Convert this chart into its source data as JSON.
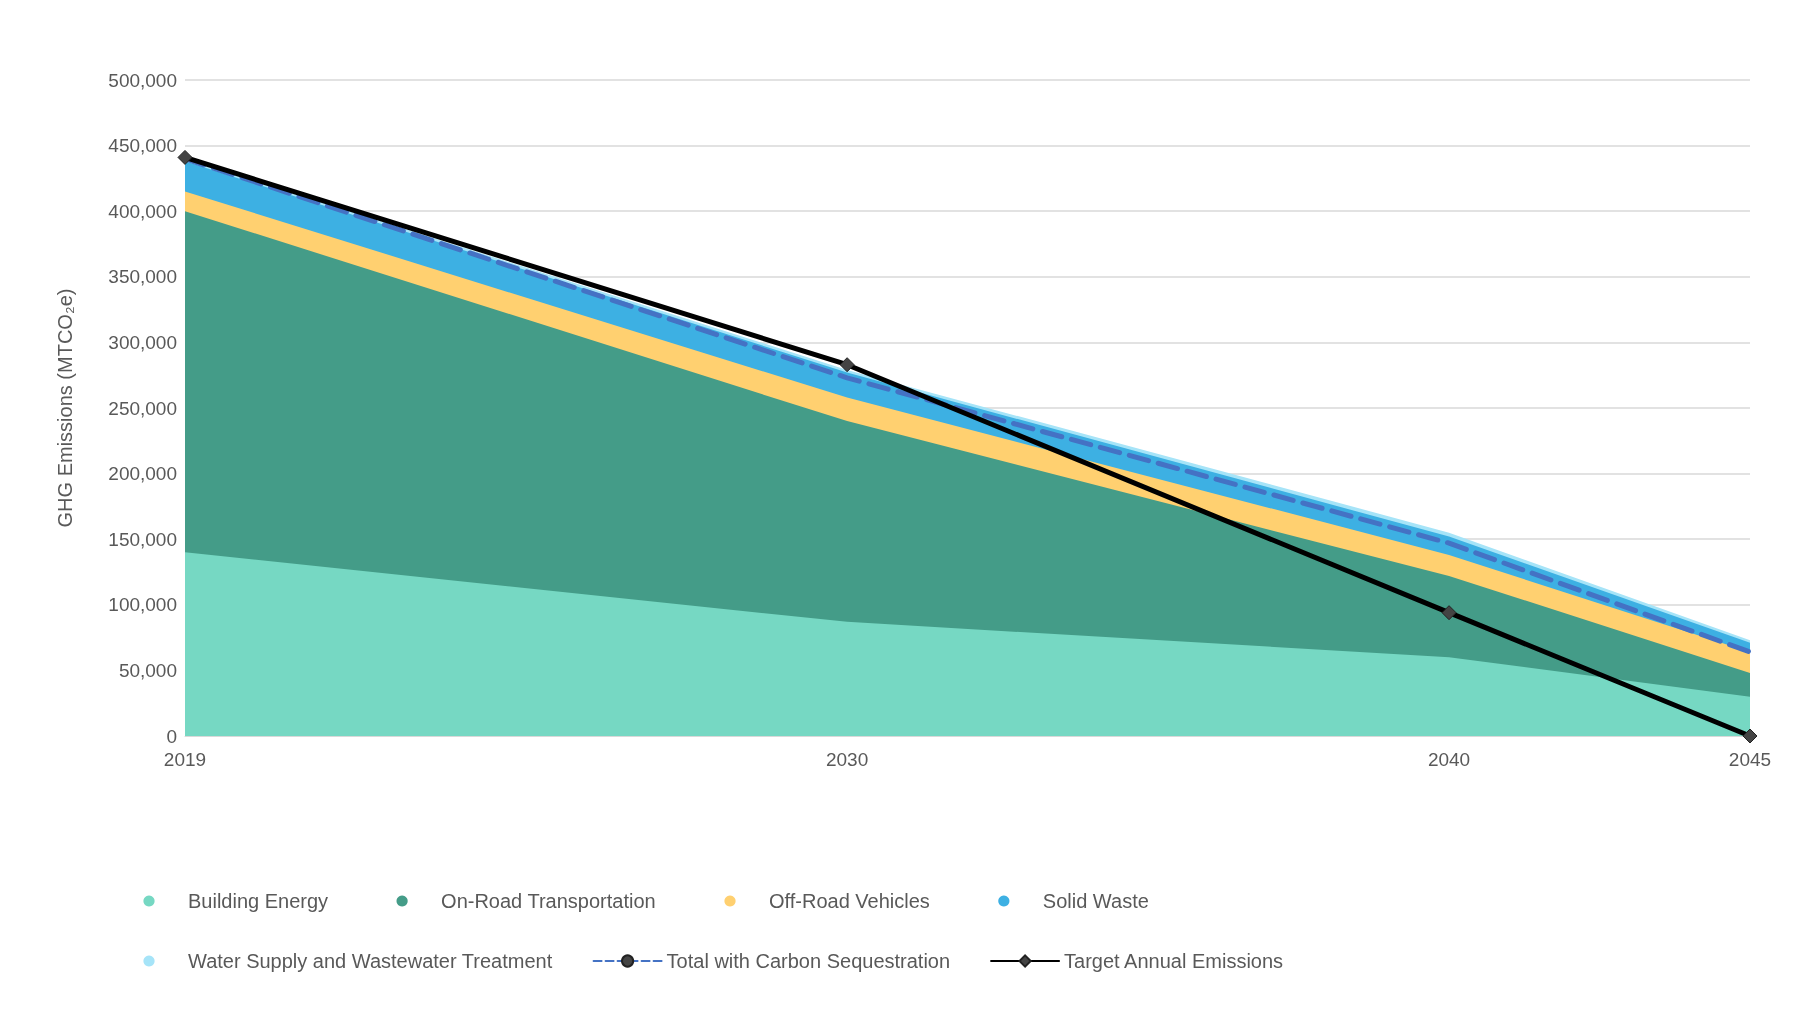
{
  "chart_data": {
    "type": "area",
    "stacked": true,
    "ylabel": "GHG Emissions (MTCO₂e)",
    "x": [
      2019,
      2030,
      2040,
      2045
    ],
    "xlim": [
      2019,
      2045
    ],
    "xticks": [
      2019,
      2030,
      2040,
      2045
    ],
    "ylim": [
      0,
      500000
    ],
    "yticks": [
      0,
      {
        "value": 50000,
        "label": "50,000"
      },
      {
        "value": 100000,
        "label": "100,000"
      },
      {
        "value": 150000,
        "label": "150,000"
      },
      {
        "value": 200000,
        "label": "200,000"
      },
      {
        "value": 250000,
        "label": "250,000"
      },
      {
        "value": 300000,
        "label": "300,000"
      },
      {
        "value": 350000,
        "label": "350,000"
      },
      {
        "value": 400000,
        "label": "400,000"
      },
      {
        "value": 450000,
        "label": "450,000"
      },
      {
        "value": 500000,
        "label": "500,000"
      }
    ],
    "grid": "y",
    "legend": "bottom",
    "series": [
      {
        "name": "Building Energy",
        "color": "#76d8c3",
        "values": [
          140000,
          87000,
          60000,
          30000
        ]
      },
      {
        "name": "On-Road Transportation",
        "color": "#449c88",
        "values": [
          260000,
          153000,
          62000,
          18000
        ]
      },
      {
        "name": "Off-Road Vehicles",
        "color": "#ffd070",
        "values": [
          15000,
          18000,
          16000,
          16000
        ]
      },
      {
        "name": "Solid Waste",
        "color": "#3db0e3",
        "values": [
          23000,
          19000,
          14000,
          7000
        ]
      },
      {
        "name": "Water Supply and Wastewater Treatment",
        "color": "#a6e4f8",
        "values": [
          2000,
          2000,
          3000,
          2000
        ]
      },
      {
        "name": "Total with Carbon Sequestration",
        "type": "line",
        "color": "#4472c4",
        "line_style": "dashed",
        "marker": "none",
        "values": [
          440000,
          273000,
          147000,
          64000
        ]
      },
      {
        "name": "Target Annual Emissions",
        "type": "line",
        "color": "#000000",
        "line_style": "solid",
        "marker": "diamond",
        "values": [
          441000,
          283000,
          94000,
          0
        ]
      }
    ]
  }
}
